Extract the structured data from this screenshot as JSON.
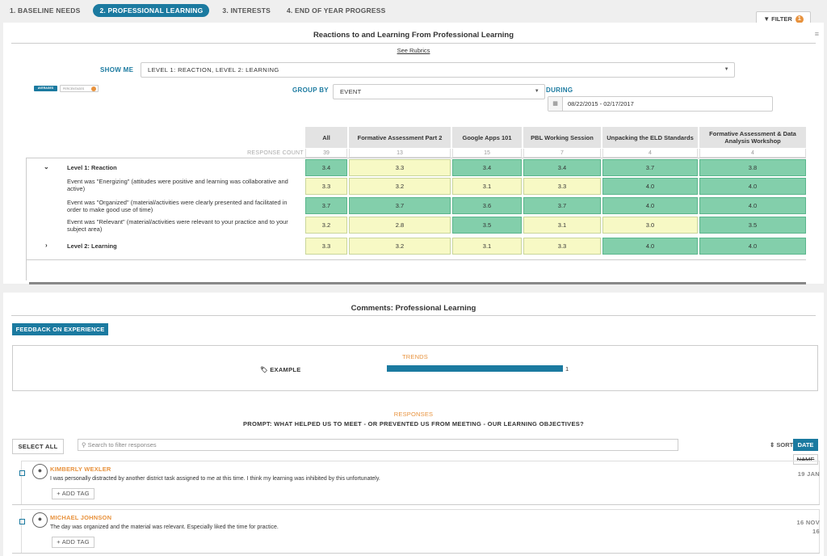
{
  "tabs": [
    {
      "label": "1. BASELINE NEEDS"
    },
    {
      "label": "2. PROFESSIONAL LEARNING"
    },
    {
      "label": "3. INTERESTS"
    },
    {
      "label": "4. END OF YEAR PROGRESS"
    }
  ],
  "filter": {
    "label": "FILTER",
    "count": "1"
  },
  "panel1": {
    "title": "Reactions to and Learning From Professional Learning",
    "see_rubrics": "See Rubrics",
    "show_me_label": "SHOW ME",
    "show_me_value": "LEVEL 1: REACTION, LEVEL 2: LEARNING",
    "toggle_avg": "AVERAGES",
    "toggle_pct": "PERCENTAGES",
    "group_by_label": "GROUP BY",
    "group_by_value": "EVENT",
    "during_label": "DURING",
    "date_range": "08/22/2015 - 02/17/2017"
  },
  "table": {
    "columns": [
      "All",
      "Formative Assessment Part 2",
      "Google Apps 101",
      "PBL Working Session",
      "Unpacking the ELD Standards",
      "Formative Assessment & Data Analysis Workshop"
    ],
    "response_count_label": "RESPONSE COUNT",
    "response_counts": [
      "39",
      "13",
      "15",
      "7",
      "4",
      "4"
    ],
    "rows": [
      {
        "label": "Level 1: Reaction",
        "values": [
          "3.4",
          "3.3",
          "3.4",
          "3.4",
          "3.7",
          "3.8"
        ]
      },
      {
        "label": "Event was \"Energizing\" (attitudes were positive and learning was collaborative and active)",
        "values": [
          "3.3",
          "3.2",
          "3.1",
          "3.3",
          "4.0",
          "4.0"
        ]
      },
      {
        "label": "Event was \"Organized\" (material/activities were clearly presented and facilitated in order to make good use of time)",
        "values": [
          "3.7",
          "3.7",
          "3.6",
          "3.7",
          "4.0",
          "4.0"
        ]
      },
      {
        "label": "Event was \"Relevant\" (material/activities were relevant to your practice and to your subject area)",
        "values": [
          "3.2",
          "2.8",
          "3.5",
          "3.1",
          "3.0",
          "3.5"
        ]
      },
      {
        "label": "Level 2: Learning",
        "values": [
          "3.3",
          "3.2",
          "3.1",
          "3.3",
          "4.0",
          "4.0"
        ]
      }
    ],
    "colors": {
      "green": "#83cfab",
      "yellow": "#f7f9c5"
    }
  },
  "panel2": {
    "title": "Comments: Professional Learning",
    "feedback_button": "FEEDBACK ON EXPERIENCE",
    "trends_title": "TRENDS",
    "trend_tag": "EXAMPLE",
    "trend_count": "1",
    "responses_title": "RESPONSES",
    "prompt": "PROMPT: WHAT HELPED US TO MEET - OR PREVENTED US FROM MEETING - OUR LEARNING OBJECTIVES?",
    "select_all": "SELECT ALL",
    "search_placeholder": "Search to filter responses",
    "sort_label": "SORT",
    "sort_date": "DATE",
    "sort_name": "NAME",
    "add_tag": "ADD TAG",
    "responses": [
      {
        "name": "KIMBERLY WEXLER",
        "text": "I was personally distracted by another district task assigned to me at this time. I think my learning was inhibited by this unfortunately.",
        "date_line1": "19 JAN",
        "date_line2": ""
      },
      {
        "name": "MICHAEL JOHNSON",
        "text": "The day was organized and the material was relevant. Especially liked the time for practice.",
        "date_line1": "16 NOV",
        "date_line2": "16"
      }
    ]
  }
}
